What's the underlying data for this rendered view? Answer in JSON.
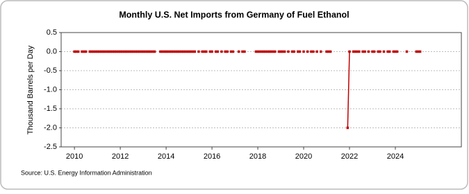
{
  "chart_data": {
    "type": "line",
    "title": "Monthly U.S. Net Imports from Germany of Fuel Ethanol",
    "y_label": "Thousand Barrels per Day",
    "source": "Source: U.S. Energy Information Administration",
    "x": [
      2010.0,
      2010.08,
      2010.17,
      2010.25,
      2010.33,
      2010.42,
      2010.5,
      2010.58,
      2010.67,
      2010.75,
      2010.83,
      2010.92,
      2011.0,
      2011.08,
      2011.17,
      2011.25,
      2011.33,
      2011.42,
      2011.5,
      2011.58,
      2011.67,
      2011.75,
      2011.83,
      2011.92,
      2012.0,
      2012.08,
      2012.17,
      2012.25,
      2012.33,
      2012.42,
      2012.5,
      2012.58,
      2012.67,
      2012.75,
      2012.83,
      2012.92,
      2013.0,
      2013.08,
      2013.17,
      2013.25,
      2013.33,
      2013.42,
      2013.5,
      2013.58,
      2013.67,
      2013.75,
      2013.83,
      2013.92,
      2014.0,
      2014.08,
      2014.17,
      2014.25,
      2014.33,
      2014.42,
      2014.5,
      2014.58,
      2014.67,
      2014.75,
      2014.83,
      2014.92,
      2015.0,
      2015.08,
      2015.17,
      2015.25,
      2015.33,
      2015.42,
      2015.5,
      2015.58,
      2015.67,
      2015.75,
      2015.83,
      2015.92,
      2016.0,
      2016.08,
      2016.17,
      2016.25,
      2016.33,
      2016.42,
      2016.5,
      2016.58,
      2016.67,
      2016.75,
      2016.83,
      2016.92,
      2017.0,
      2017.08,
      2017.17,
      2017.25,
      2017.33,
      2017.42,
      2017.5,
      2017.58,
      2017.67,
      2017.75,
      2017.83,
      2017.92,
      2018.0,
      2018.08,
      2018.17,
      2018.25,
      2018.33,
      2018.42,
      2018.5,
      2018.58,
      2018.67,
      2018.75,
      2018.83,
      2018.92,
      2019.0,
      2019.08,
      2019.17,
      2019.25,
      2019.33,
      2019.42,
      2019.5,
      2019.58,
      2019.67,
      2019.75,
      2019.83,
      2019.92,
      2020.0,
      2020.08,
      2020.17,
      2020.25,
      2020.33,
      2020.42,
      2020.5,
      2020.58,
      2020.67,
      2020.75,
      2020.83,
      2020.92,
      2021.0,
      2021.08,
      2021.17,
      2021.25,
      2021.33,
      2021.42,
      2021.5,
      2021.58,
      2021.67,
      2021.75,
      2021.83,
      2021.92,
      2022.0,
      2022.08,
      2022.17,
      2022.25,
      2022.33,
      2022.42,
      2022.5,
      2022.58,
      2022.67,
      2022.75,
      2022.83,
      2022.92,
      2023.0,
      2023.08,
      2023.17,
      2023.25,
      2023.33,
      2023.42,
      2023.5,
      2023.58,
      2023.67,
      2023.75,
      2023.83,
      2023.92,
      2024.0,
      2024.08,
      2024.17,
      2024.25,
      2024.33,
      2024.42,
      2024.5,
      2024.58,
      2024.67,
      2024.75,
      2024.83,
      2024.92,
      2025.0,
      2025.08
    ],
    "series": [
      {
        "color": "#c00000",
        "values": [
          0,
          0,
          0,
          null,
          0,
          0,
          0,
          null,
          0,
          0,
          0,
          0,
          0,
          0,
          0,
          0,
          0,
          0,
          0,
          0,
          0,
          0,
          0,
          0,
          0,
          0,
          0,
          0,
          0,
          0,
          0,
          0,
          0,
          0,
          0,
          0,
          0,
          0,
          0,
          0,
          0,
          0,
          0,
          null,
          null,
          0,
          0,
          0,
          0,
          0,
          0,
          0,
          0,
          0,
          0,
          0,
          0,
          0,
          0,
          0,
          0,
          0,
          0,
          0,
          null,
          0,
          null,
          0,
          0,
          0,
          null,
          0,
          0,
          null,
          0,
          0,
          null,
          0,
          null,
          0,
          0,
          null,
          0,
          0,
          null,
          null,
          0,
          null,
          0,
          0,
          null,
          null,
          null,
          null,
          null,
          0,
          0,
          0,
          0,
          0,
          0,
          0,
          0,
          0,
          0,
          0,
          null,
          0,
          0,
          0,
          0,
          null,
          0,
          null,
          0,
          0,
          null,
          0,
          0,
          null,
          0,
          null,
          0,
          null,
          0,
          0,
          null,
          0,
          null,
          0,
          null,
          null,
          0,
          0,
          0,
          null,
          null,
          null,
          null,
          null,
          null,
          null,
          null,
          -2,
          0,
          null,
          0,
          0,
          0,
          0,
          null,
          0,
          0,
          null,
          0,
          null,
          0,
          0,
          null,
          0,
          0,
          null,
          0,
          null,
          0,
          0,
          null,
          0,
          0,
          0,
          null,
          null,
          null,
          null,
          0,
          null,
          null,
          null,
          null,
          0,
          0,
          0
        ]
      }
    ],
    "xlim": [
      2009.42,
      2026.88
    ],
    "xticks": [
      2010,
      2012,
      2014,
      2016,
      2018,
      2020,
      2022,
      2024
    ],
    "ylim": [
      -2.5,
      0.5
    ],
    "yticks": [
      0.5,
      {
        "value": 0,
        "label": "0.0"
      },
      -0.5,
      {
        "value": -1,
        "label": "-1.0"
      },
      -1.5,
      {
        "value": -2,
        "label": "-2.0"
      },
      -2.5
    ],
    "grid": true
  }
}
